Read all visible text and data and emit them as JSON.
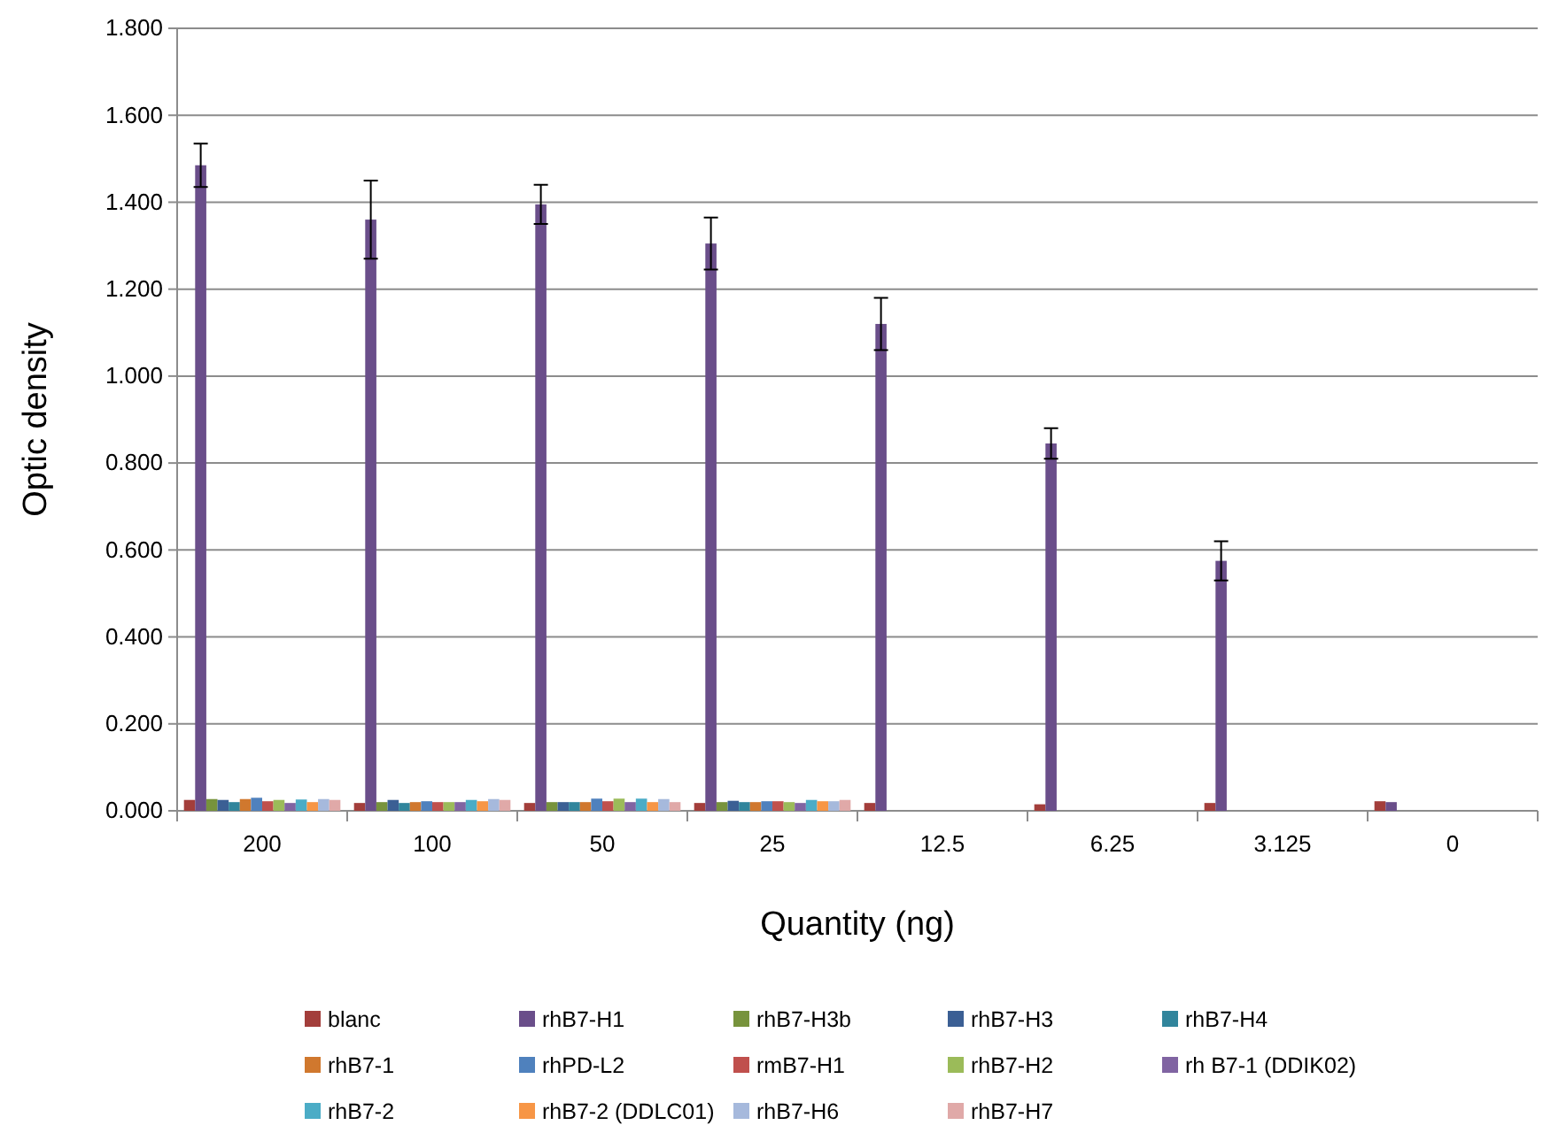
{
  "chart_data": {
    "type": "bar",
    "xlabel": "Quantity (ng)",
    "ylabel": "Optic density",
    "categories": [
      "200",
      "100",
      "50",
      "25",
      "12.5",
      "6.25",
      "3.125",
      "0"
    ],
    "ylim": [
      0,
      1.8
    ],
    "yticks": [
      {
        "value": 0,
        "label": "0.000"
      },
      {
        "value": 0.2,
        "label": "0.200"
      },
      {
        "value": 0.4,
        "label": "0.400"
      },
      {
        "value": 0.6,
        "label": "0.600"
      },
      {
        "value": 0.8,
        "label": "0.800"
      },
      {
        "value": 1,
        "label": "1.000"
      },
      {
        "value": 1.2,
        "label": "1.200"
      },
      {
        "value": 1.4,
        "label": "1.400"
      },
      {
        "value": 1.6,
        "label": "1.600"
      },
      {
        "value": 1.8,
        "label": "1.800"
      }
    ],
    "grid": "y",
    "legend": "bottom",
    "series": [
      {
        "name": "blanc",
        "color": "#a33e3b",
        "values": [
          0.025,
          0.018,
          0.018,
          0.018,
          0.018,
          0.015,
          0.018,
          0.022
        ]
      },
      {
        "name": "rhB7-H1",
        "color": "#6a4e8a",
        "values": [
          1.485,
          1.36,
          1.395,
          1.305,
          1.12,
          0.845,
          0.575,
          0.02
        ],
        "errors": [
          0.05,
          0.09,
          0.045,
          0.06,
          0.06,
          0.035,
          0.045,
          null
        ]
      },
      {
        "name": "rhB7-H3b",
        "color": "#77933c",
        "values": [
          0.027,
          0.02,
          0.02,
          0.02,
          null,
          null,
          null,
          null
        ]
      },
      {
        "name": "rhB7-H3",
        "color": "#3b5f94",
        "values": [
          0.025,
          0.025,
          0.02,
          0.023,
          null,
          null,
          null,
          null
        ]
      },
      {
        "name": "rhB7-H4",
        "color": "#31859c",
        "values": [
          0.02,
          0.018,
          0.02,
          0.02,
          null,
          null,
          null,
          null
        ]
      },
      {
        "name": "rhB7-1",
        "color": "#d0782e",
        "values": [
          0.027,
          0.02,
          0.02,
          0.02,
          null,
          null,
          null,
          null
        ]
      },
      {
        "name": "rhPD-L2",
        "color": "#4f81bd",
        "values": [
          0.03,
          0.022,
          0.028,
          0.022,
          null,
          null,
          null,
          null
        ]
      },
      {
        "name": "rmB7-H1",
        "color": "#c0504d",
        "values": [
          0.022,
          0.02,
          0.022,
          0.022,
          null,
          null,
          null,
          null
        ]
      },
      {
        "name": "rhB7-H2",
        "color": "#9bbb59",
        "values": [
          0.025,
          0.02,
          0.028,
          0.02,
          null,
          null,
          null,
          null
        ]
      },
      {
        "name": "rh B7-1 (DDIK02)",
        "color": "#8064a2",
        "values": [
          0.018,
          0.02,
          0.02,
          0.018,
          null,
          null,
          null,
          null
        ]
      },
      {
        "name": "rhB7-2",
        "color": "#4bacc6",
        "values": [
          0.026,
          0.025,
          0.028,
          0.025,
          null,
          null,
          null,
          null
        ]
      },
      {
        "name": "rhB7-2 (DDLC01)",
        "color": "#f79646",
        "values": [
          0.02,
          0.022,
          0.02,
          0.022,
          null,
          null,
          null,
          null
        ]
      },
      {
        "name": "rhB7-H6",
        "color": "#a6b9dc",
        "values": [
          0.027,
          0.027,
          0.027,
          0.022,
          null,
          null,
          null,
          null
        ]
      },
      {
        "name": "rhB7-H7",
        "color": "#e0a9a8",
        "values": [
          0.025,
          0.025,
          0.02,
          0.025,
          null,
          null,
          null,
          null
        ]
      }
    ]
  }
}
